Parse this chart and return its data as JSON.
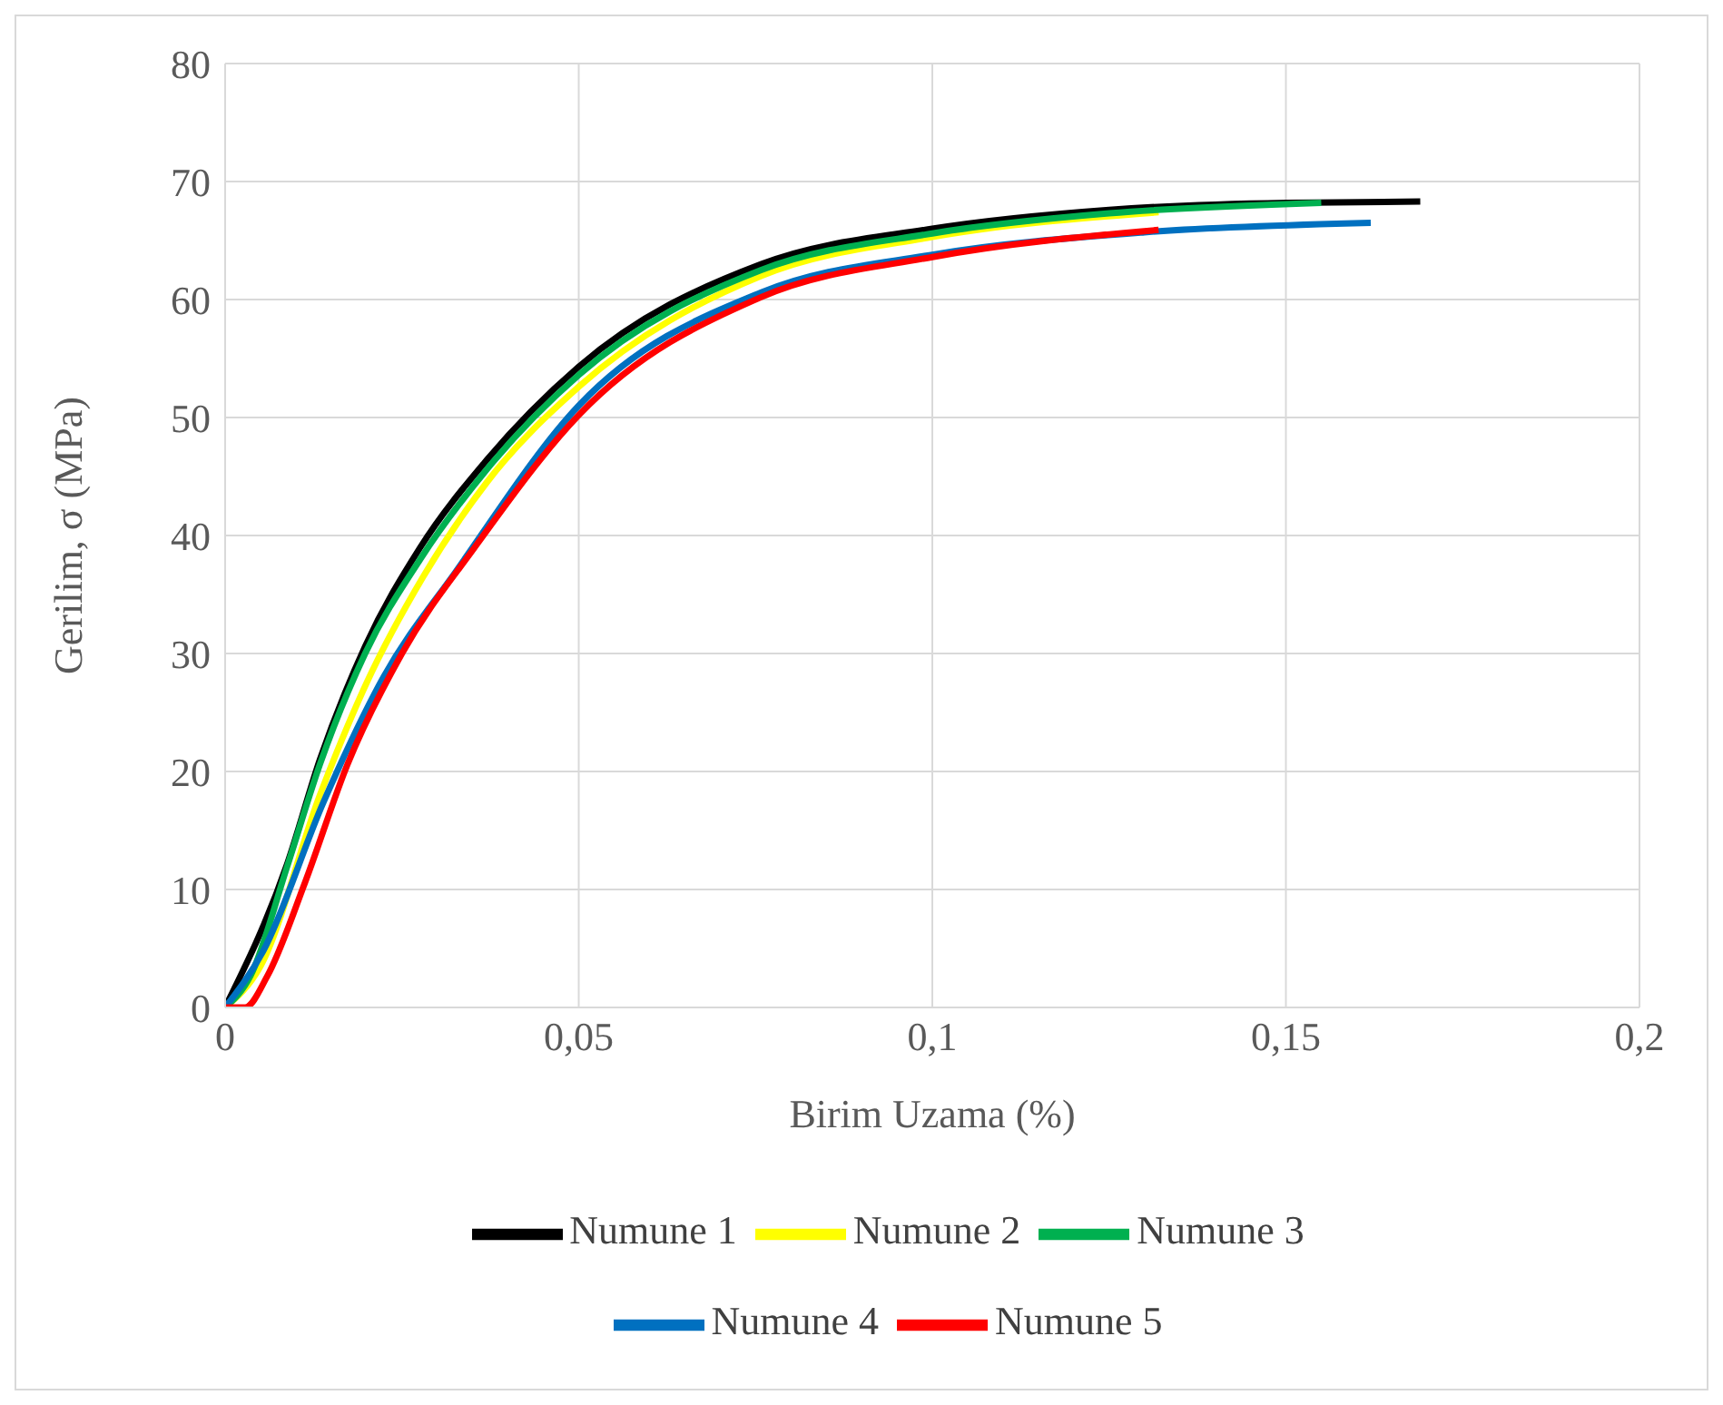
{
  "chart_data": {
    "type": "line",
    "xlabel": "Birim Uzama (%)",
    "ylabel": "Gerilim, σ (MPa)",
    "xlim": [
      0,
      0.2
    ],
    "ylim": [
      0,
      80
    ],
    "xticks": [
      0,
      {
        "value": 0.05,
        "label": "0,05"
      },
      {
        "value": 0.1,
        "label": "0,1"
      },
      {
        "value": 0.15,
        "label": "0,15"
      },
      {
        "value": 0.2,
        "label": "0,2"
      }
    ],
    "yticks": [
      0,
      10,
      20,
      30,
      40,
      50,
      60,
      70,
      80
    ],
    "grid": true,
    "legend": "bottom",
    "marker": "none",
    "line_style": "solid",
    "series": [
      {
        "name": "Numune 1",
        "color": "#000000",
        "x": [
          0,
          0.0088,
          0.0134,
          0.0198,
          0.0276,
          0.037,
          0.05,
          0.0758,
          0.1,
          0.125,
          0.15,
          0.169
        ],
        "values": [
          0,
          12.2,
          21,
          30.6,
          39,
          46.4,
          54.3,
          63,
          66,
          67.6,
          68.2,
          68.3
        ]
      },
      {
        "name": "Numune 2",
        "color": "#ffff00",
        "x": [
          0,
          0.005,
          0.0134,
          0.02,
          0.028,
          0.037,
          0.05,
          0.0758,
          0.1,
          0.132
        ],
        "values": [
          0,
          3.5,
          18,
          27.5,
          36.5,
          44.5,
          52.6,
          62,
          65.3,
          67.4
        ]
      },
      {
        "name": "Numune 3",
        "color": "#00b050",
        "x": [
          0,
          0.0036,
          0.0088,
          0.0134,
          0.0198,
          0.0276,
          0.037,
          0.05,
          0.0758,
          0.1,
          0.125,
          0.155
        ],
        "values": [
          0,
          2.7,
          12,
          20.6,
          30,
          38,
          45.6,
          53.6,
          62.5,
          65.6,
          67.3,
          68.2
        ]
      },
      {
        "name": "Numune 4",
        "color": "#0070c0",
        "x": [
          0,
          0.0054,
          0.0139,
          0.0224,
          0.0327,
          0.05,
          0.0758,
          0.1,
          0.13,
          0.162
        ],
        "values": [
          0,
          4.8,
          17.4,
          28,
          37,
          51,
          60.6,
          63.8,
          65.7,
          66.5
        ]
      },
      {
        "name": "Numune 5",
        "color": "#ff0000",
        "x": [
          0,
          0.0028,
          0.006,
          0.0113,
          0.0173,
          0.025,
          0.0353,
          0.05,
          0.0758,
          0.1,
          0.132
        ],
        "values": [
          0,
          0,
          2.7,
          10.6,
          20.6,
          30,
          39,
          50.2,
          60.2,
          63.6,
          65.9
        ]
      }
    ]
  }
}
